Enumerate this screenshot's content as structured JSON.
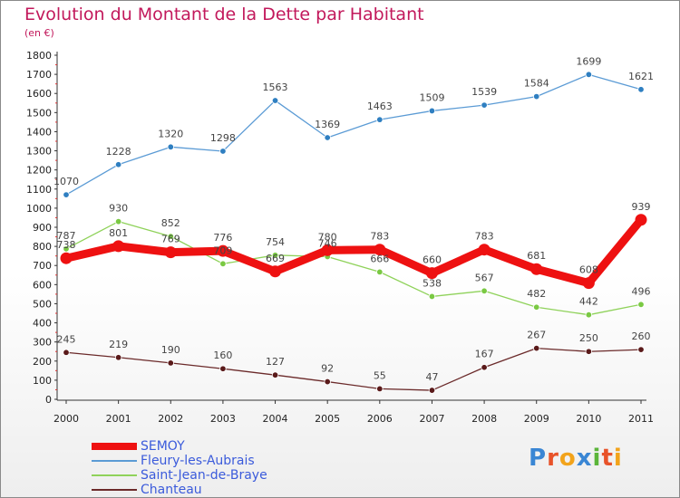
{
  "chart_data": {
    "type": "line",
    "title": "Evolution du Montant de la Dette par Habitant",
    "subtitle": "(en €)",
    "xlabel": "",
    "ylabel": "",
    "categories": [
      "2000",
      "2001",
      "2002",
      "2003",
      "2004",
      "2005",
      "2006",
      "2007",
      "2008",
      "2009",
      "2010",
      "2011"
    ],
    "ylim": [
      0,
      1800
    ],
    "yticks": [
      0,
      100,
      200,
      300,
      400,
      500,
      600,
      700,
      800,
      900,
      1000,
      1100,
      1200,
      1300,
      1400,
      1500,
      1600,
      1700,
      1800
    ],
    "grid": false,
    "legend_position": "bottom-left",
    "series": [
      {
        "name": "Fleury-les-Aubrais",
        "color": "#5b9bd5",
        "marker": "#2f7fc1",
        "width": "thin",
        "values": [
          1070,
          1228,
          1320,
          1298,
          1563,
          1369,
          1463,
          1509,
          1539,
          1584,
          1699,
          1621
        ]
      },
      {
        "name": "Saint-Jean-de-Braye",
        "color": "#8fd25a",
        "marker": "#7ac943",
        "width": "thin",
        "values": [
          787,
          930,
          852,
          709,
          754,
          746,
          666,
          538,
          567,
          482,
          442,
          496
        ]
      },
      {
        "name": "Chanteau",
        "color": "#6b2a2a",
        "marker": "#5a1a1a",
        "width": "thin",
        "values": [
          245,
          219,
          190,
          160,
          127,
          92,
          55,
          47,
          167,
          267,
          250,
          260
        ]
      },
      {
        "name": "SEMOY",
        "color": "#ee1111",
        "marker": "#ee1111",
        "width": "thick",
        "values": [
          738,
          801,
          769,
          776,
          669,
          780,
          783,
          660,
          783,
          681,
          608,
          939
        ]
      }
    ],
    "legend_order": [
      "SEMOY",
      "Fleury-les-Aubrais",
      "Saint-Jean-de-Braye",
      "Chanteau"
    ],
    "logo_text": "Proxiti"
  }
}
